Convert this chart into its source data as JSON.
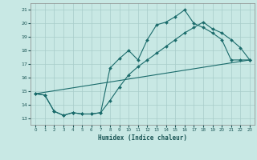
{
  "xlabel": "Humidex (Indice chaleur)",
  "xlim": [
    -0.5,
    23.5
  ],
  "ylim": [
    12.5,
    21.5
  ],
  "xticks": [
    0,
    1,
    2,
    3,
    4,
    5,
    6,
    7,
    8,
    9,
    10,
    11,
    12,
    13,
    14,
    15,
    16,
    17,
    18,
    19,
    20,
    21,
    22,
    23
  ],
  "yticks": [
    13,
    14,
    15,
    16,
    17,
    18,
    19,
    20,
    21
  ],
  "background_color": "#c8e8e4",
  "grid_color": "#a8ccca",
  "line_color": "#1a6b6b",
  "series1": {
    "x": [
      0,
      1,
      2,
      3,
      4,
      5,
      6,
      7,
      8,
      9,
      10,
      11,
      12,
      13,
      14,
      15,
      16,
      17,
      18,
      19,
      20,
      21,
      22,
      23
    ],
    "y": [
      14.8,
      14.7,
      13.5,
      13.2,
      13.4,
      13.3,
      13.3,
      13.4,
      16.7,
      17.4,
      18.0,
      17.3,
      18.8,
      19.9,
      20.1,
      20.5,
      21.0,
      20.0,
      19.7,
      19.3,
      18.8,
      17.3,
      17.3,
      17.3
    ]
  },
  "series2": {
    "x": [
      0,
      23
    ],
    "y": [
      14.8,
      17.3
    ]
  },
  "series3": {
    "x": [
      0,
      1,
      2,
      3,
      4,
      5,
      6,
      7,
      8,
      9,
      10,
      11,
      12,
      13,
      14,
      15,
      16,
      17,
      18,
      19,
      20,
      21,
      22,
      23
    ],
    "y": [
      14.8,
      14.7,
      13.5,
      13.2,
      13.4,
      13.3,
      13.3,
      13.4,
      14.3,
      15.3,
      16.2,
      16.8,
      17.3,
      17.8,
      18.3,
      18.8,
      19.3,
      19.7,
      20.1,
      19.6,
      19.3,
      18.8,
      18.2,
      17.3
    ]
  }
}
